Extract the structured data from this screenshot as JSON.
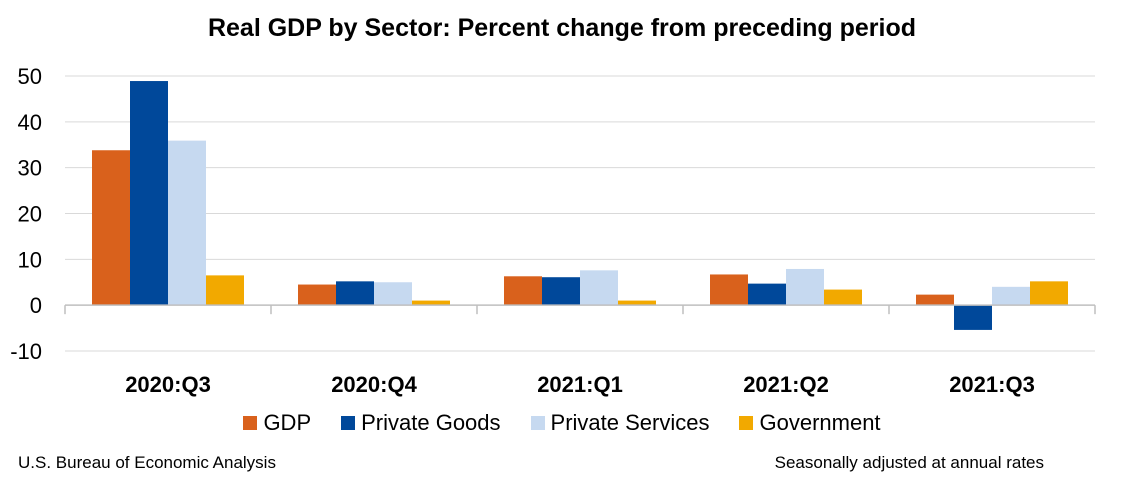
{
  "chart_data": {
    "type": "bar",
    "title": "Real GDP by Sector:  Percent change from preceding period",
    "categories": [
      "2020:Q3",
      "2020:Q4",
      "2021:Q1",
      "2021:Q2",
      "2021:Q3"
    ],
    "series": [
      {
        "name": "GDP",
        "color": "#D9611C",
        "values": [
          33.8,
          4.5,
          6.3,
          6.7,
          2.3
        ]
      },
      {
        "name": "Private Goods",
        "color": "#00489A",
        "values": [
          48.9,
          5.2,
          6.1,
          4.7,
          -5.4
        ]
      },
      {
        "name": "Private Services",
        "color": "#C6D9F0",
        "values": [
          35.9,
          5.0,
          7.6,
          7.9,
          4.0
        ]
      },
      {
        "name": "Government",
        "color": "#F2A900",
        "values": [
          6.5,
          1.0,
          1.0,
          3.4,
          5.2
        ]
      }
    ],
    "ylim": [
      -10,
      50
    ],
    "yticks": [
      -10,
      0,
      10,
      20,
      30,
      40,
      50
    ],
    "grid": true,
    "legend_position": "bottom"
  },
  "footer": {
    "source": "U.S. Bureau of Economic Analysis",
    "note": "Seasonally adjusted at annual rates"
  }
}
